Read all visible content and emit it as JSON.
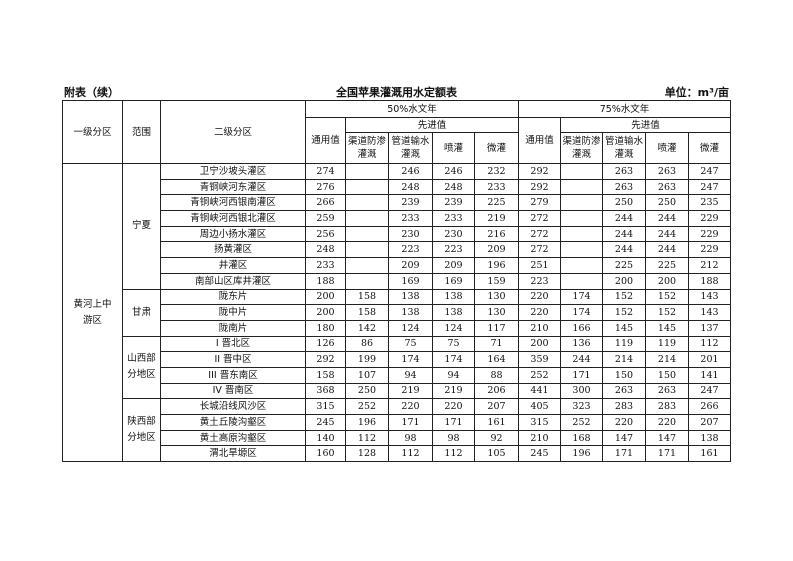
{
  "caption": {
    "left": "附表（续）",
    "title": "全国苹果灌溉用水定额表",
    "unit": "单位：m³/亩"
  },
  "header": {
    "level1": "一级分区",
    "scope": "范围",
    "level2": "二级分区",
    "p50": "50%水文年",
    "p75": "75%水文年",
    "general": "通用值",
    "advanced": "先进值",
    "canal": "渠道防渗灌溉",
    "pipe": "管道输水灌溉",
    "sprinkler": "喷灌",
    "micro": "微灌"
  },
  "level1_region": "黄河上中游区",
  "groups": [
    {
      "scope": "宁夏",
      "rows": [
        [
          "卫宁沙坡头灌区",
          "274",
          "",
          "246",
          "246",
          "232",
          "292",
          "",
          "263",
          "263",
          "247"
        ],
        [
          "青铜峡河东灌区",
          "276",
          "",
          "248",
          "248",
          "233",
          "292",
          "",
          "263",
          "263",
          "247"
        ],
        [
          "青铜峡河西银南灌区",
          "266",
          "",
          "239",
          "239",
          "225",
          "279",
          "",
          "250",
          "250",
          "235"
        ],
        [
          "青铜峡河西银北灌区",
          "259",
          "",
          "233",
          "233",
          "219",
          "272",
          "",
          "244",
          "244",
          "229"
        ],
        [
          "周边小扬水灌区",
          "256",
          "",
          "230",
          "230",
          "216",
          "272",
          "",
          "244",
          "244",
          "229"
        ],
        [
          "扬黄灌区",
          "248",
          "",
          "223",
          "223",
          "209",
          "272",
          "",
          "244",
          "244",
          "229"
        ],
        [
          "井灌区",
          "233",
          "",
          "209",
          "209",
          "196",
          "251",
          "",
          "225",
          "225",
          "212"
        ],
        [
          "南部山区库井灌区",
          "188",
          "",
          "169",
          "169",
          "159",
          "223",
          "",
          "200",
          "200",
          "188"
        ]
      ]
    },
    {
      "scope": "甘肃",
      "rows": [
        [
          "陇东片",
          "200",
          "158",
          "138",
          "138",
          "130",
          "220",
          "174",
          "152",
          "152",
          "143"
        ],
        [
          "陇中片",
          "200",
          "158",
          "138",
          "138",
          "130",
          "220",
          "174",
          "152",
          "152",
          "143"
        ],
        [
          "陇南片",
          "180",
          "142",
          "124",
          "124",
          "117",
          "210",
          "166",
          "145",
          "145",
          "137"
        ]
      ]
    },
    {
      "scope": "山西部分地区",
      "rows": [
        [
          "I 晋北区",
          "126",
          "86",
          "75",
          "75",
          "71",
          "200",
          "136",
          "119",
          "119",
          "112"
        ],
        [
          "II 晋中区",
          "292",
          "199",
          "174",
          "174",
          "164",
          "359",
          "244",
          "214",
          "214",
          "201"
        ],
        [
          "III 晋东南区",
          "158",
          "107",
          "94",
          "94",
          "88",
          "252",
          "171",
          "150",
          "150",
          "141"
        ],
        [
          "IV 晋南区",
          "368",
          "250",
          "219",
          "219",
          "206",
          "441",
          "300",
          "263",
          "263",
          "247"
        ]
      ]
    },
    {
      "scope": "陕西部分地区",
      "rows": [
        [
          "长城沿线风沙区",
          "315",
          "252",
          "220",
          "220",
          "207",
          "405",
          "323",
          "283",
          "283",
          "266"
        ],
        [
          "黄土丘陵沟壑区",
          "245",
          "196",
          "171",
          "171",
          "161",
          "315",
          "252",
          "220",
          "220",
          "207"
        ],
        [
          "黄土高原沟壑区",
          "140",
          "112",
          "98",
          "98",
          "92",
          "210",
          "168",
          "147",
          "147",
          "138"
        ],
        [
          "渭北旱塬区",
          "160",
          "128",
          "112",
          "112",
          "105",
          "245",
          "196",
          "171",
          "171",
          "161"
        ]
      ]
    }
  ]
}
